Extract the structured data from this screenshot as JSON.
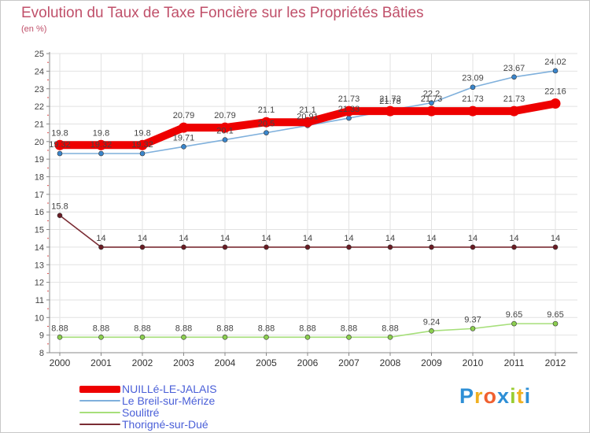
{
  "title": "Evolution du Taux de Taxe Foncière sur les Propriétés Bâties",
  "unit_label": "(en %)",
  "logo": {
    "letters": [
      "P",
      "r",
      "o",
      "x",
      "i",
      "t",
      "i"
    ],
    "colors": [
      "#2e8fd6",
      "#f0b020",
      "#f06030",
      "#2e8fd6",
      "#9acd32",
      "#f0b020",
      "#2e8fd6"
    ]
  },
  "chart_data": {
    "type": "line",
    "title": "Evolution du Taux de Taxe Foncière sur les Propriétés Bâties",
    "ylabel": "(en %)",
    "xlabel": "",
    "ylim": [
      8,
      25
    ],
    "yticks": [
      8,
      9,
      10,
      11,
      12,
      13,
      14,
      15,
      16,
      17,
      18,
      19,
      20,
      21,
      22,
      23,
      24,
      25
    ],
    "categories": [
      "2000",
      "2001",
      "2002",
      "2003",
      "2004",
      "2005",
      "2006",
      "2007",
      "2008",
      "2009",
      "2010",
      "2011",
      "2012"
    ],
    "series": [
      {
        "name": "NUILLé-LE-JALAIS",
        "color": "#ee0000",
        "marker": "#ee0000",
        "values": [
          19.8,
          19.8,
          19.8,
          20.79,
          20.79,
          21.1,
          21.1,
          21.73,
          21.73,
          21.73,
          21.73,
          21.73,
          22.16
        ],
        "labels": [
          "19.8",
          "19.8",
          "19.8",
          "20.79",
          "20.79",
          "21.1",
          "21.1",
          "21.73",
          "21.73",
          "21.73",
          "21.73",
          "21.73",
          "22.16"
        ]
      },
      {
        "name": "Le Breil-sur-Mérize",
        "color": "#7fb0dc",
        "marker": "#3a86cc",
        "values": [
          19.32,
          19.32,
          19.32,
          19.71,
          20.1,
          20.5,
          20.91,
          21.33,
          21.78,
          22.2,
          23.09,
          23.67,
          24.02
        ],
        "labels": [
          "19.32",
          "19.32",
          "19.32",
          "19.71",
          "20.1",
          "20.5",
          "20.91",
          "21.33",
          "21.78",
          "22.2",
          "23.09",
          "23.67",
          "24.02"
        ]
      },
      {
        "name": "Soulitré",
        "color": "#a6df7a",
        "marker": "#8ccf4f",
        "values": [
          8.88,
          8.88,
          8.88,
          8.88,
          8.88,
          8.88,
          8.88,
          8.88,
          8.88,
          9.24,
          9.37,
          9.65,
          9.65
        ],
        "labels": [
          "8.88",
          "8.88",
          "8.88",
          "8.88",
          "8.88",
          "8.88",
          "8.88",
          "8.88",
          "8.88",
          "9.24",
          "9.37",
          "9.65",
          "9.65"
        ]
      },
      {
        "name": "Thorigné-sur-Dué",
        "color": "#7a2c34",
        "marker": "#6a1c24",
        "values": [
          15.8,
          14,
          14,
          14,
          14,
          14,
          14,
          14,
          14,
          14,
          14,
          14,
          14
        ],
        "labels": [
          "15.8",
          "14",
          "14",
          "14",
          "14",
          "14",
          "14",
          "14",
          "14",
          "14",
          "14",
          "14",
          "14"
        ]
      }
    ]
  }
}
